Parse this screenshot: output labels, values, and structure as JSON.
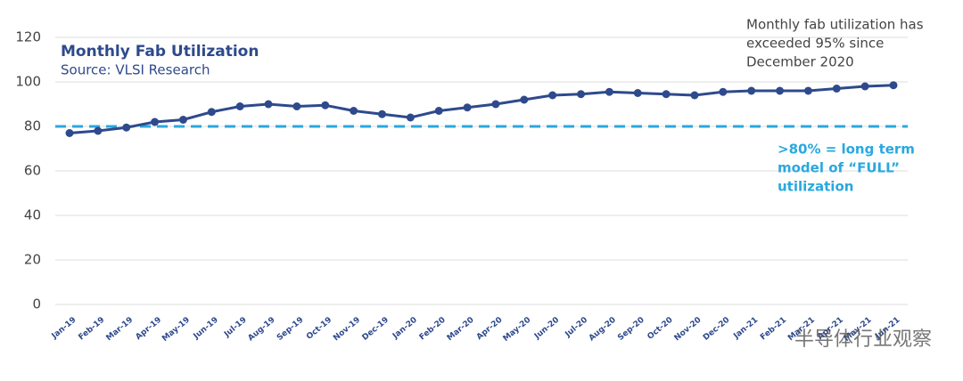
{
  "chart_data": {
    "type": "line",
    "title": "Monthly Fab Utilization",
    "subtitle": "Source: VLSI Research",
    "categories": [
      "Jan-19",
      "Feb-19",
      "Mar-19",
      "Apr-19",
      "May-19",
      "Jun-19",
      "Jul-19",
      "Aug-19",
      "Sep-19",
      "Oct-19",
      "Nov-19",
      "Dec-19",
      "Jan-20",
      "Feb-20",
      "Mar-20",
      "Apr-20",
      "May-20",
      "Jun-20",
      "Jul-20",
      "Aug-20",
      "Sep-20",
      "Oct-20",
      "Nov-20",
      "Dec-20",
      "Jan-21",
      "Feb-21",
      "Mar-21",
      "Apr-21",
      "May-21",
      "Jun-21"
    ],
    "series": [
      {
        "name": "Monthly Fab Utilization",
        "color": "#2e4a8c",
        "values": [
          77,
          78,
          79.5,
          82,
          83,
          86.5,
          89,
          90,
          89,
          89.5,
          87,
          85.5,
          84,
          87,
          88.5,
          90,
          92,
          94,
          94.5,
          95.5,
          95,
          94.5,
          94,
          95.5,
          96,
          96,
          96,
          97,
          98,
          98.5
        ]
      }
    ],
    "ylim": [
      0,
      120
    ],
    "yticks": [
      0,
      20,
      40,
      60,
      80,
      100,
      120
    ],
    "grid": true,
    "reference_line": {
      "value": 80,
      "color": "#29a8e0",
      "label": [
        ">80% = long term",
        "model of “FULL”",
        "utilization"
      ]
    },
    "annotation": [
      "Monthly fab utilization has",
      "exceeded 95% since",
      "December 2020"
    ],
    "watermark": "半导体行业观察"
  }
}
